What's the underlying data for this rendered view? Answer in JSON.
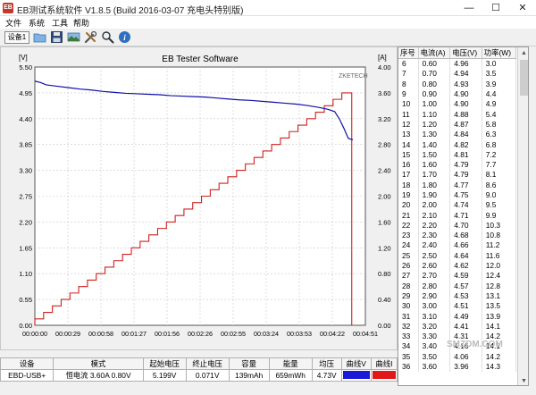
{
  "window": {
    "title": "EB测试系统软件 V1.8.5 (Build 2016-03-07 充电头特别版)",
    "minimize_glyph": "—",
    "maximize_glyph": "☐",
    "close_glyph": "✕",
    "icon_label": "EB"
  },
  "menu": [
    "文件",
    "系统",
    "工具",
    "帮助"
  ],
  "toolbar": {
    "device_button": "设备1",
    "icons": [
      "folder-icon",
      "save-icon",
      "screenshot-icon",
      "tools-icon",
      "search-icon",
      "info-icon"
    ]
  },
  "chart_data": {
    "type": "line",
    "title": "EB Tester Software",
    "ylabel_left_unit": "[V]",
    "ylabel_right_unit": "[A]",
    "brand_text": "ZKETECH",
    "y_left_ticks": [
      "5.50",
      "4.95",
      "4.40",
      "3.85",
      "3.30",
      "2.75",
      "2.20",
      "1.65",
      "1.10",
      "0.55",
      "0.00"
    ],
    "y_right_ticks": [
      "4.00",
      "3.60",
      "3.20",
      "2.80",
      "2.40",
      "2.00",
      "1.60",
      "1.20",
      "0.80",
      "0.40",
      "0.00"
    ],
    "x_ticks": [
      "00:00:00",
      "00:00:29",
      "00:00:58",
      "00:01:27",
      "00:01:56",
      "00:02:26",
      "00:02:55",
      "00:03:24",
      "00:03:53",
      "00:04:22",
      "00:04:51"
    ],
    "ylim_left": [
      0,
      5.5
    ],
    "ylim_right": [
      0,
      4.0
    ],
    "xlim": [
      0,
      291
    ],
    "grid": true,
    "series": [
      {
        "color": "#1010a8",
        "axis": "left",
        "x": [
          0,
          5,
          10,
          20,
          30,
          40,
          50,
          60,
          70,
          80,
          90,
          100,
          110,
          120,
          130,
          140,
          150,
          160,
          170,
          180,
          190,
          200,
          210,
          220,
          230,
          240,
          250,
          258,
          264,
          268,
          272,
          276,
          280
        ],
        "y": [
          5.2,
          5.17,
          5.12,
          5.09,
          5.06,
          5.03,
          5.01,
          4.98,
          4.96,
          4.94,
          4.93,
          4.92,
          4.91,
          4.89,
          4.88,
          4.87,
          4.86,
          4.84,
          4.82,
          4.8,
          4.79,
          4.77,
          4.75,
          4.73,
          4.71,
          4.68,
          4.64,
          4.6,
          4.55,
          4.4,
          4.2,
          3.98,
          3.95
        ]
      },
      {
        "color": "#d02020",
        "axis": "right",
        "step_end": 278,
        "step_amp": 0.1,
        "final_amp": 3.6,
        "drop_x": 279
      }
    ]
  },
  "table": {
    "headers": [
      "序号",
      "电流(A)",
      "电压(V)",
      "功率(W)"
    ],
    "rows": [
      [
        "6",
        "0.60",
        "4.96",
        "3.0"
      ],
      [
        "7",
        "0.70",
        "4.94",
        "3.5"
      ],
      [
        "8",
        "0.80",
        "4.93",
        "3.9"
      ],
      [
        "9",
        "0.90",
        "4.90",
        "4.4"
      ],
      [
        "10",
        "1.00",
        "4.90",
        "4.9"
      ],
      [
        "11",
        "1.10",
        "4.88",
        "5.4"
      ],
      [
        "12",
        "1.20",
        "4.87",
        "5.8"
      ],
      [
        "13",
        "1.30",
        "4.84",
        "6.3"
      ],
      [
        "14",
        "1.40",
        "4.82",
        "6.8"
      ],
      [
        "15",
        "1.50",
        "4.81",
        "7.2"
      ],
      [
        "16",
        "1.60",
        "4.79",
        "7.7"
      ],
      [
        "17",
        "1.70",
        "4.79",
        "8.1"
      ],
      [
        "18",
        "1.80",
        "4.77",
        "8.6"
      ],
      [
        "19",
        "1.90",
        "4.75",
        "9.0"
      ],
      [
        "20",
        "2.00",
        "4.74",
        "9.5"
      ],
      [
        "21",
        "2.10",
        "4.71",
        "9.9"
      ],
      [
        "22",
        "2.20",
        "4.70",
        "10.3"
      ],
      [
        "23",
        "2.30",
        "4.68",
        "10.8"
      ],
      [
        "24",
        "2.40",
        "4.66",
        "11.2"
      ],
      [
        "25",
        "2.50",
        "4.64",
        "11.6"
      ],
      [
        "26",
        "2.60",
        "4.62",
        "12.0"
      ],
      [
        "27",
        "2.70",
        "4.59",
        "12.4"
      ],
      [
        "28",
        "2.80",
        "4.57",
        "12.8"
      ],
      [
        "29",
        "2.90",
        "4.53",
        "13.1"
      ],
      [
        "30",
        "3.00",
        "4.51",
        "13.5"
      ],
      [
        "31",
        "3.10",
        "4.49",
        "13.9"
      ],
      [
        "32",
        "3.20",
        "4.41",
        "14.1"
      ],
      [
        "33",
        "3.30",
        "4.31",
        "14.2"
      ],
      [
        "34",
        "3.40",
        "4.16",
        "14.1"
      ],
      [
        "35",
        "3.50",
        "4.06",
        "14.2"
      ],
      [
        "36",
        "3.60",
        "3.96",
        "14.3"
      ]
    ]
  },
  "status": {
    "headers": [
      "设备",
      "模式",
      "起始电压",
      "终止电压",
      "容量",
      "能量",
      "均压",
      "曲线V",
      "曲线I"
    ],
    "values": [
      "EBD-USB+",
      "恒电流 3.60A 0.80V",
      "5.199V",
      "0.071V",
      "139mAh",
      "659mWh",
      "4.73V",
      "",
      ""
    ],
    "curve_v_color": "#1a1ad8",
    "curve_i_color": "#e01818"
  },
  "watermark": "SMZDM.COM"
}
